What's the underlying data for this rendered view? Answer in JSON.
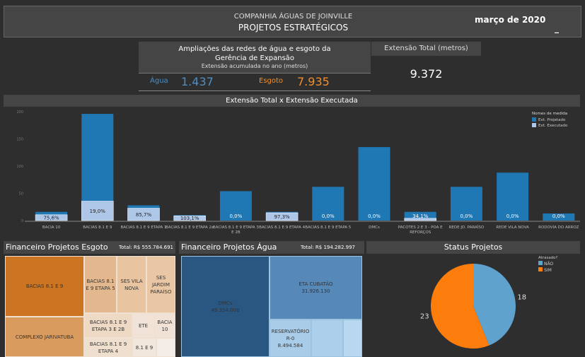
{
  "header": {
    "company": "COMPANHIA ÁGUAS DE JOINVILLE",
    "title": "PROJETOS ESTRATÉGICOS",
    "date": "março de 2020",
    "minimize": "_"
  },
  "ampliacoes": {
    "title1": "Ampliações das redes de água e esgoto da",
    "title2": "Gerência de Expansão",
    "subtitle": "Extensão acumulada no ano (metros)",
    "agua_label": "Água",
    "agua_value": "1.437",
    "esgoto_label": "Esgoto",
    "esgoto_value": "7.935",
    "agua_color": "#4e8ec4",
    "esgoto_color": "#f28e2b"
  },
  "extensao_total": {
    "label": "Extensão Total (metros)",
    "value": "9.372"
  },
  "chart_data": [
    {
      "type": "bar",
      "title": "Extensão Total x Extensão Executada",
      "legend_title": "Nomes de medida",
      "legend_position": "top-right",
      "ylim": [
        0,
        200
      ],
      "yticks": [
        0,
        50,
        100,
        150,
        200
      ],
      "categories": [
        "BACIA 10",
        "BACIAS 8.1 E 9",
        "BACIAS 8.1 E 9 ETAPA 1",
        "BACIAS 8.1 E 9 ETAPA 2a",
        "BACIAS 8.1 E 9 ETAPA 3 E 2B",
        "BACIAS 8.1 E 9 ETAPA 4",
        "BACIAS 8.1 E 9 ETAPA 5",
        "DMCs",
        "PACOTES 2 E 3 - POA E REFORÇOS",
        "REDE JD. PARAÍSO",
        "REDE VILA NOVA",
        "RODOVIA DO ARROZ"
      ],
      "series": [
        {
          "name": "Ext. Projetado",
          "color": "#1f77b4",
          "values": [
            16,
            196,
            28,
            10,
            54,
            16,
            62,
            135,
            16,
            62,
            88,
            13
          ]
        },
        {
          "name": "Ext. Executado",
          "color": "#aec7e8",
          "values": [
            12,
            37,
            24,
            10,
            0,
            15.6,
            0,
            0,
            5.5,
            0,
            0,
            0
          ]
        }
      ],
      "labels": [
        "75,6%",
        "19,0%",
        "85,7%",
        "103,1%",
        "0,0%",
        "97,3%",
        "0,0%",
        "0,0%",
        "34,1%",
        "0,0%",
        "0,0%",
        "0,0%"
      ]
    },
    {
      "type": "pie",
      "title": "Status Projetos",
      "legend_title": "Atrasado?",
      "slices": [
        {
          "label": "NÃO",
          "value": 18,
          "color": "#5fa2ce"
        },
        {
          "label": "SIM",
          "value": 23,
          "color": "#fc7d0b"
        }
      ]
    }
  ],
  "esgoto": {
    "title": "Financeiro Projetos Esgoto",
    "total": "Total: R$ 555.784.691",
    "items": [
      "BACIAS 8.1 E 9",
      "COMPLEXO JARIVATUBA",
      "BACIAS 8.1 E 9 ETAPA 5",
      "SES VILA NOVA",
      "SES JARDIM PARAÍSO",
      "BACIAS 8.1 E 9 ETAPA 3 E 2B",
      "ETE",
      "BACIA 10",
      "BACIAS 8.1 E 9 ETAPA 4",
      "8.1 E 9"
    ]
  },
  "agua": {
    "title": "Financeiro Projetos Água",
    "total": "Total: R$ 194.282.997",
    "items": [
      {
        "name": "DMCs",
        "value": "49.354.000"
      },
      {
        "name": "ETA CUBATÃO",
        "value": "31.926.130"
      },
      {
        "name": "RESERVATÓRIO R-0",
        "value": "8.494.584"
      }
    ]
  }
}
